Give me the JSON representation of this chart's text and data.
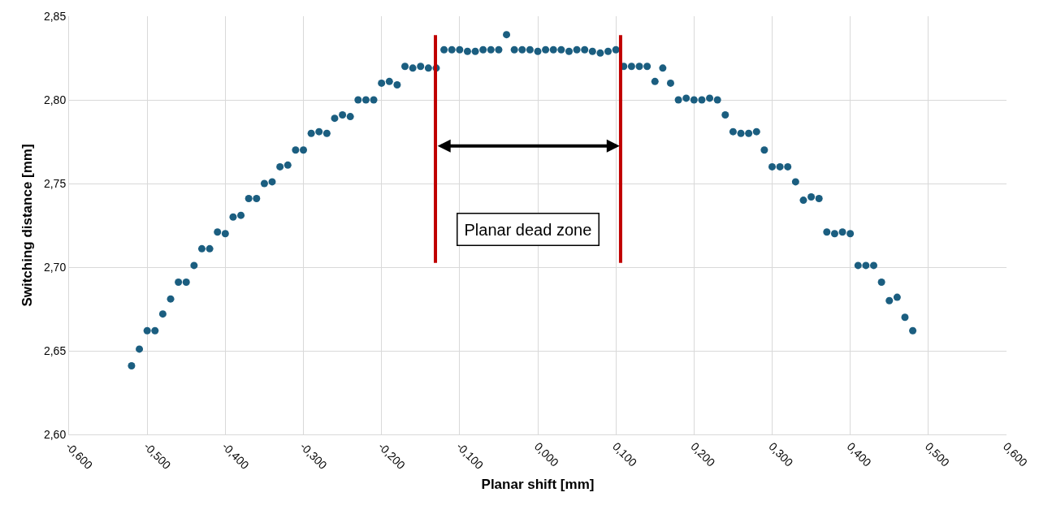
{
  "chart_data": {
    "type": "scatter",
    "xlabel": "Planar shift [mm]",
    "ylabel": "Switching distance [mm]",
    "x": [
      -0.52,
      -0.51,
      -0.5,
      -0.49,
      -0.48,
      -0.47,
      -0.46,
      -0.45,
      -0.44,
      -0.43,
      -0.42,
      -0.41,
      -0.4,
      -0.39,
      -0.38,
      -0.37,
      -0.36,
      -0.35,
      -0.34,
      -0.33,
      -0.32,
      -0.31,
      -0.3,
      -0.29,
      -0.28,
      -0.27,
      -0.26,
      -0.25,
      -0.24,
      -0.23,
      -0.22,
      -0.21,
      -0.2,
      -0.19,
      -0.18,
      -0.17,
      -0.16,
      -0.15,
      -0.14,
      -0.13,
      -0.12,
      -0.11,
      -0.1,
      -0.09,
      -0.08,
      -0.07,
      -0.06,
      -0.05,
      -0.04,
      -0.03,
      -0.02,
      -0.01,
      0.0,
      0.01,
      0.02,
      0.03,
      0.04,
      0.05,
      0.06,
      0.07,
      0.08,
      0.09,
      0.1,
      0.11,
      0.12,
      0.13,
      0.14,
      0.15,
      0.16,
      0.17,
      0.18,
      0.19,
      0.2,
      0.21,
      0.22,
      0.23,
      0.24,
      0.25,
      0.26,
      0.27,
      0.28,
      0.29,
      0.3,
      0.31,
      0.32,
      0.33,
      0.34,
      0.35,
      0.36,
      0.37,
      0.38,
      0.39,
      0.4,
      0.41,
      0.42,
      0.43,
      0.44,
      0.45,
      0.46,
      0.47,
      0.48
    ],
    "series": [
      {
        "color": "#1b5e80",
        "values": [
          2.641,
          2.651,
          2.662,
          2.662,
          2.672,
          2.681,
          2.691,
          2.691,
          2.701,
          2.711,
          2.711,
          2.721,
          2.72,
          2.73,
          2.731,
          2.741,
          2.741,
          2.75,
          2.751,
          2.76,
          2.761,
          2.77,
          2.77,
          2.78,
          2.781,
          2.78,
          2.789,
          2.791,
          2.79,
          2.8,
          2.8,
          2.8,
          2.81,
          2.811,
          2.809,
          2.82,
          2.819,
          2.82,
          2.819,
          2.819,
          2.83,
          2.83,
          2.83,
          2.829,
          2.829,
          2.83,
          2.83,
          2.83,
          2.839,
          2.83,
          2.83,
          2.83,
          2.829,
          2.83,
          2.83,
          2.83,
          2.829,
          2.83,
          2.83,
          2.829,
          2.828,
          2.829,
          2.83,
          2.82,
          2.82,
          2.82,
          2.82,
          2.811,
          2.819,
          2.81,
          2.8,
          2.801,
          2.8,
          2.8,
          2.801,
          2.8,
          2.791,
          2.781,
          2.78,
          2.78,
          2.781,
          2.77,
          2.76,
          2.76,
          2.76,
          2.751,
          2.74,
          2.742,
          2.741,
          2.721,
          2.72,
          2.721,
          2.72,
          2.701,
          2.701,
          2.701,
          2.691,
          2.68,
          2.682,
          2.67,
          2.662
        ]
      }
    ],
    "marker": "circle",
    "grid": true,
    "xlim": [
      -0.6,
      0.6
    ],
    "xticks": [
      {
        "value": -0.6,
        "label": "-0,600"
      },
      {
        "value": -0.5,
        "label": "-0,500"
      },
      {
        "value": -0.4,
        "label": "-0,400"
      },
      {
        "value": -0.3,
        "label": "-0,300"
      },
      {
        "value": -0.2,
        "label": "-0,200"
      },
      {
        "value": -0.1,
        "label": "-0,100"
      },
      {
        "value": 0,
        "label": "0,000"
      },
      {
        "value": 0.1,
        "label": "0,100"
      },
      {
        "value": 0.2,
        "label": "0,200"
      },
      {
        "value": 0.3,
        "label": "0,300"
      },
      {
        "value": 0.4,
        "label": "0,400"
      },
      {
        "value": 0.5,
        "label": "0,500"
      },
      {
        "value": 0.6,
        "label": "0,600"
      }
    ],
    "ylim": [
      2.6,
      2.85
    ],
    "yticks": [
      {
        "value": 2.6,
        "label": "2,60"
      },
      {
        "value": 2.65,
        "label": "2,65"
      },
      {
        "value": 2.7,
        "label": "2,70"
      },
      {
        "value": 2.75,
        "label": "2,75"
      },
      {
        "value": 2.8,
        "label": "2,80"
      },
      {
        "value": 2.85,
        "label": "2,85"
      }
    ],
    "ref_lines": [
      {
        "axis": "x",
        "value": -0.131,
        "color": "#c00000"
      },
      {
        "axis": "x",
        "value": 0.106,
        "color": "#c00000"
      }
    ],
    "annotations": [
      "Planar dead zone"
    ]
  }
}
